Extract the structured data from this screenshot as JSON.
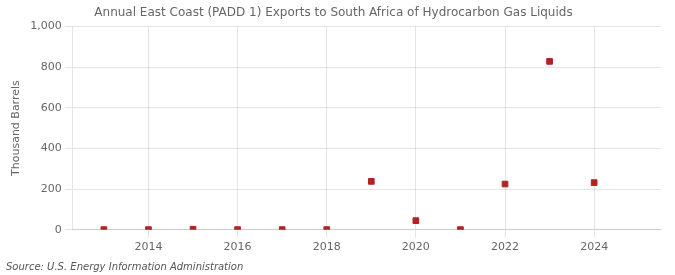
{
  "chart_data": {
    "type": "scatter",
    "title": "Annual East Coast (PADD 1) Exports to South Africa of Hydrocarbon Gas Liquids",
    "ylabel": "Thousand Barrels",
    "source": "Source: U.S. Energy Information Administration",
    "x": [
      2013,
      2014,
      2015,
      2016,
      2017,
      2018,
      2019,
      2020,
      2021,
      2022,
      2023,
      2024
    ],
    "values": [
      1,
      1,
      3,
      1,
      1,
      1,
      238,
      45,
      1,
      225,
      828,
      232
    ],
    "color": "#b22222",
    "marker": "square",
    "xlim": [
      2012.3,
      2025.5
    ],
    "xticks": [
      2014,
      2016,
      2018,
      2020,
      2022,
      2024
    ],
    "ylim": [
      0,
      1000
    ],
    "yticks": [
      0,
      200,
      400,
      600,
      800,
      {
        "value": 1000,
        "label": "1,000"
      }
    ],
    "grid": true
  }
}
